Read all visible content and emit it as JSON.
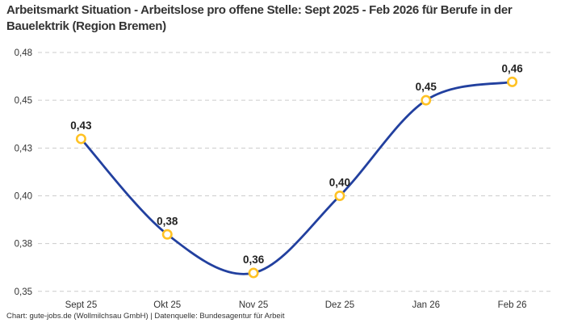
{
  "title": "Arbeitsmarkt Situation - Arbeitslose pro offene Stelle: Sept 2025 - Feb 2026 für Berufe in der Bauelektrik (Region Bremen)",
  "footer": "Chart: gute-jobs.de (Wollmilchsau GmbH) | Datenquelle: Bundesagentur für Arbeit",
  "colors": {
    "line": "#22409F",
    "marker_stroke": "#FFC224",
    "marker_fill": "#FFFFFF",
    "gridline": "#CCCCCC",
    "axis_text": "#333333",
    "point_label_text": "#222222",
    "title_text": "#333333",
    "background": "#FFFFFF"
  },
  "chart_data": {
    "type": "line",
    "title": "Arbeitsmarkt Situation - Arbeitslose pro offene Stelle: Sept 2025 - Feb 2026 für Berufe in der Bauelektrik (Region Bremen)",
    "categories": [
      "Sept 25",
      "Okt 25",
      "Nov 25",
      "Dez 25",
      "Jan 26",
      "Feb 26"
    ],
    "values": [
      0.43,
      0.38,
      0.36,
      0.4,
      0.45,
      0.46
    ],
    "plot_values_estimated_from_gridlines": [
      0.433,
      0.381,
      0.36,
      0.402,
      0.454,
      0.464
    ],
    "point_labels": [
      "0,43",
      "0,38",
      "0,36",
      "0,40",
      "0,45",
      "0,46"
    ],
    "ytick_labels_top_to_bottom": [
      "0,48",
      "0,45",
      "0,43",
      "0,40",
      "0,38",
      "0,35"
    ],
    "ylim": [
      0.35,
      0.48
    ],
    "xlabel": "",
    "ylabel": "",
    "grid": "horizontal-dashed",
    "legend": "none",
    "line_smooth": true,
    "marker": "open-circle"
  }
}
